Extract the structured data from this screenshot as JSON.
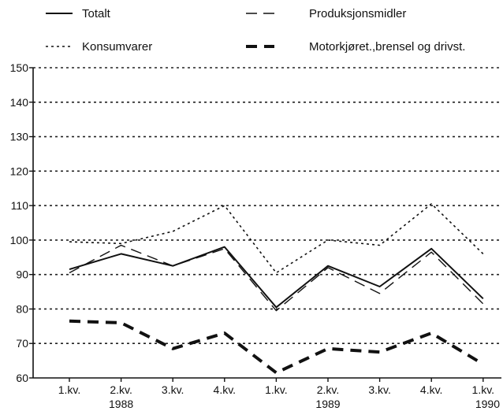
{
  "chart_data": {
    "type": "line",
    "categories": [
      "1.kv.",
      "2.kv.",
      "3.kv.",
      "4.kv.",
      "1.kv.",
      "2.kv.",
      "3.kv.",
      "4.kv.",
      "1.kv."
    ],
    "year_labels": [
      {
        "label": "1988",
        "category_index": 1
      },
      {
        "label": "1989",
        "category_index": 5
      },
      {
        "label": "1990",
        "category_index": 8
      }
    ],
    "ylim": [
      60,
      150
    ],
    "yticks": [
      60,
      70,
      80,
      90,
      100,
      110,
      120,
      130,
      140,
      150
    ],
    "grid": "dotted horizontal at every 10 units",
    "legend_position": "top",
    "series": [
      {
        "name": "Totalt",
        "line_style": "solid",
        "values": [
          91.5,
          96,
          92.5,
          98,
          80.5,
          92.5,
          86.5,
          97.5,
          83
        ]
      },
      {
        "name": "Produksjonsmidler",
        "line_style": "dashed-thin",
        "values": [
          90.5,
          98.5,
          92.5,
          97.5,
          79.5,
          92,
          84.5,
          96.5,
          81.5
        ]
      },
      {
        "name": "Konsumvarer",
        "line_style": "dotted",
        "values": [
          99.5,
          99,
          102.5,
          110,
          90.5,
          100,
          98.5,
          110.5,
          96
        ]
      },
      {
        "name": "Motorkjøret.,brensel og drivst.",
        "line_style": "dashed-thick",
        "values": [
          76.5,
          76,
          68.5,
          73,
          61.5,
          68.5,
          67.5,
          73,
          64
        ]
      }
    ]
  }
}
